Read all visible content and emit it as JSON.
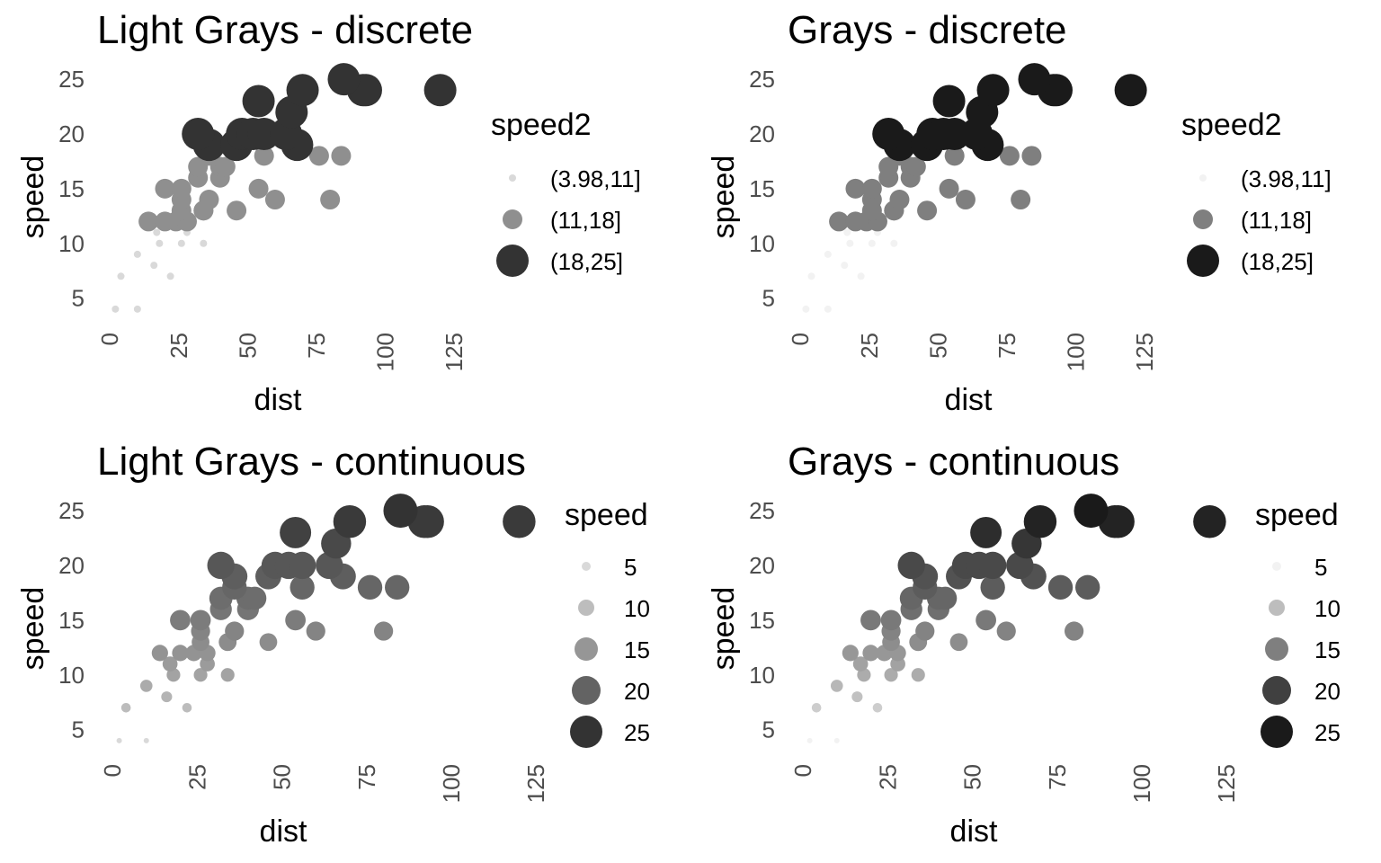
{
  "chart_data": [
    {
      "type": "scatter",
      "title": "Light Grays - discrete",
      "xlabel": "dist",
      "ylabel": "speed",
      "xlim": [
        -4,
        126
      ],
      "ylim": [
        3,
        25.5
      ],
      "x_ticks": [
        "0",
        "25",
        "50",
        "75",
        "100",
        "125"
      ],
      "y_ticks": [
        "5",
        "10",
        "15",
        "20",
        "25"
      ],
      "legend": {
        "title": "speed2",
        "entries": [
          {
            "label": "(3.98,11]",
            "color": "#d9d9d9",
            "size": 4
          },
          {
            "label": "(11,18]",
            "color": "#8f8f8f",
            "size": 11
          },
          {
            "label": "(18,25]",
            "color": "#333333",
            "size": 18
          }
        ]
      },
      "mapping": "discrete",
      "x": [
        2,
        10,
        4,
        22,
        16,
        10,
        18,
        26,
        34,
        17,
        28,
        14,
        20,
        24,
        28,
        26,
        34,
        34,
        46,
        26,
        36,
        60,
        80,
        20,
        26,
        54,
        32,
        40,
        32,
        40,
        42,
        36,
        56,
        76,
        84,
        36,
        46,
        68,
        32,
        48,
        52,
        56,
        64,
        66,
        54,
        70,
        92,
        93,
        120,
        85
      ],
      "y": [
        4,
        4,
        7,
        7,
        8,
        9,
        10,
        10,
        10,
        11,
        11,
        12,
        12,
        12,
        12,
        13,
        13,
        13,
        13,
        14,
        14,
        14,
        14,
        15,
        15,
        15,
        16,
        16,
        17,
        17,
        17,
        18,
        18,
        18,
        18,
        19,
        19,
        19,
        20,
        20,
        20,
        20,
        20,
        22,
        23,
        24,
        24,
        24,
        24,
        25
      ]
    },
    {
      "type": "scatter",
      "title": "Grays - discrete",
      "xlabel": "dist",
      "ylabel": "speed",
      "xlim": [
        -4,
        126
      ],
      "ylim": [
        3,
        25.5
      ],
      "x_ticks": [
        "0",
        "25",
        "50",
        "75",
        "100",
        "125"
      ],
      "y_ticks": [
        "5",
        "10",
        "15",
        "20",
        "25"
      ],
      "legend": {
        "title": "speed2",
        "entries": [
          {
            "label": "(3.98,11]",
            "color": "#f2f2f2",
            "size": 4
          },
          {
            "label": "(11,18]",
            "color": "#7f7f7f",
            "size": 11
          },
          {
            "label": "(18,25]",
            "color": "#1a1a1a",
            "size": 18
          }
        ]
      },
      "mapping": "discrete",
      "x": [
        2,
        10,
        4,
        22,
        16,
        10,
        18,
        26,
        34,
        17,
        28,
        14,
        20,
        24,
        28,
        26,
        34,
        34,
        46,
        26,
        36,
        60,
        80,
        20,
        26,
        54,
        32,
        40,
        32,
        40,
        42,
        36,
        56,
        76,
        84,
        36,
        46,
        68,
        32,
        48,
        52,
        56,
        64,
        66,
        54,
        70,
        92,
        93,
        120,
        85
      ],
      "y": [
        4,
        4,
        7,
        7,
        8,
        9,
        10,
        10,
        10,
        11,
        11,
        12,
        12,
        12,
        12,
        13,
        13,
        13,
        13,
        14,
        14,
        14,
        14,
        15,
        15,
        15,
        16,
        16,
        17,
        17,
        17,
        18,
        18,
        18,
        18,
        19,
        19,
        19,
        20,
        20,
        20,
        20,
        20,
        22,
        23,
        24,
        24,
        24,
        24,
        25
      ]
    },
    {
      "type": "scatter",
      "title": "Light Grays - continuous",
      "xlabel": "dist",
      "ylabel": "speed",
      "xlim": [
        -4,
        126
      ],
      "ylim": [
        3,
        25.5
      ],
      "x_ticks": [
        "0",
        "25",
        "50",
        "75",
        "100",
        "125"
      ],
      "y_ticks": [
        "5",
        "10",
        "15",
        "20",
        "25"
      ],
      "legend": {
        "title": "speed",
        "entries": [
          {
            "label": "5",
            "color": "#d9d9d9",
            "size": 5
          },
          {
            "label": "10",
            "color": "#bdbdbd",
            "size": 9
          },
          {
            "label": "15",
            "color": "#969696",
            "size": 13
          },
          {
            "label": "20",
            "color": "#636363",
            "size": 16
          },
          {
            "label": "25",
            "color": "#333333",
            "size": 18
          }
        ]
      },
      "mapping": "continuous",
      "x": [
        2,
        10,
        4,
        22,
        16,
        10,
        18,
        26,
        34,
        17,
        28,
        14,
        20,
        24,
        28,
        26,
        34,
        34,
        46,
        26,
        36,
        60,
        80,
        20,
        26,
        54,
        32,
        40,
        32,
        40,
        42,
        36,
        56,
        76,
        84,
        36,
        46,
        68,
        32,
        48,
        52,
        56,
        64,
        66,
        54,
        70,
        92,
        93,
        120,
        85
      ],
      "y": [
        4,
        4,
        7,
        7,
        8,
        9,
        10,
        10,
        10,
        11,
        11,
        12,
        12,
        12,
        12,
        13,
        13,
        13,
        13,
        14,
        14,
        14,
        14,
        15,
        15,
        15,
        16,
        16,
        17,
        17,
        17,
        18,
        18,
        18,
        18,
        19,
        19,
        19,
        20,
        20,
        20,
        20,
        20,
        22,
        23,
        24,
        24,
        24,
        24,
        25
      ]
    },
    {
      "type": "scatter",
      "title": "Grays - continuous",
      "xlabel": "dist",
      "ylabel": "speed",
      "xlim": [
        -4,
        126
      ],
      "ylim": [
        3,
        25.5
      ],
      "x_ticks": [
        "0",
        "25",
        "50",
        "75",
        "100",
        "125"
      ],
      "y_ticks": [
        "5",
        "10",
        "15",
        "20",
        "25"
      ],
      "legend": {
        "title": "speed",
        "entries": [
          {
            "label": "5",
            "color": "#f2f2f2",
            "size": 5
          },
          {
            "label": "10",
            "color": "#bdbdbd",
            "size": 9
          },
          {
            "label": "15",
            "color": "#7f7f7f",
            "size": 13
          },
          {
            "label": "20",
            "color": "#404040",
            "size": 16
          },
          {
            "label": "25",
            "color": "#1a1a1a",
            "size": 18
          }
        ]
      },
      "mapping": "continuous",
      "x": [
        2,
        10,
        4,
        22,
        16,
        10,
        18,
        26,
        34,
        17,
        28,
        14,
        20,
        24,
        28,
        26,
        34,
        34,
        46,
        26,
        36,
        60,
        80,
        20,
        26,
        54,
        32,
        40,
        32,
        40,
        42,
        36,
        56,
        76,
        84,
        36,
        46,
        68,
        32,
        48,
        52,
        56,
        64,
        66,
        54,
        70,
        92,
        93,
        120,
        85
      ],
      "y": [
        4,
        4,
        7,
        7,
        8,
        9,
        10,
        10,
        10,
        11,
        11,
        12,
        12,
        12,
        12,
        13,
        13,
        13,
        13,
        14,
        14,
        14,
        14,
        15,
        15,
        15,
        16,
        16,
        17,
        17,
        17,
        18,
        18,
        18,
        18,
        19,
        19,
        19,
        20,
        20,
        20,
        20,
        20,
        22,
        23,
        24,
        24,
        24,
        24,
        25
      ]
    }
  ]
}
